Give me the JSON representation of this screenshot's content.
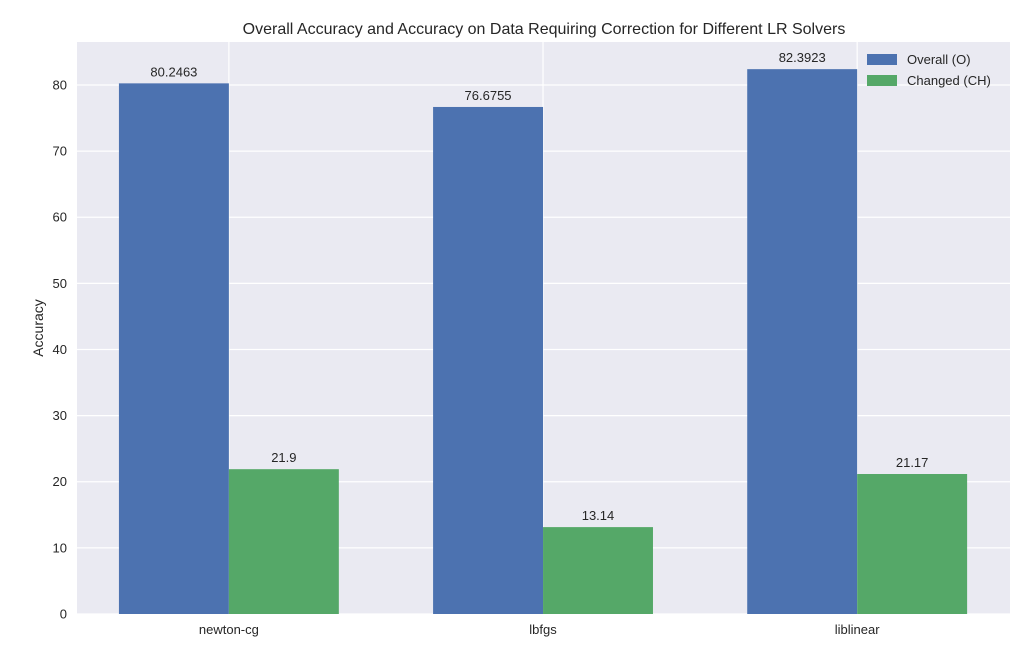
{
  "chart_data": {
    "type": "bar",
    "title": "Overall Accuracy and Accuracy on Data Requiring Correction for Different LR Solvers",
    "xlabel": "",
    "ylabel": "Accuracy",
    "categories": [
      "newton-cg",
      "lbfgs",
      "liblinear"
    ],
    "series": [
      {
        "name": "Overall (O)",
        "values": [
          80.2463,
          76.6755,
          82.3923
        ],
        "labels": [
          "80.2463",
          "76.6755",
          "82.3923"
        ],
        "color": "#4c72b0"
      },
      {
        "name": "Changed (CH)",
        "values": [
          21.9,
          13.14,
          21.17
        ],
        "labels": [
          "21.9",
          "13.14",
          "21.17"
        ],
        "color": "#55a868"
      }
    ],
    "ylim": [
      0,
      86.5
    ],
    "yticks": [
      0,
      10,
      20,
      30,
      40,
      50,
      60,
      70,
      80
    ],
    "grid": true,
    "legend_position": "top-right",
    "background": "#eaeaf2"
  }
}
